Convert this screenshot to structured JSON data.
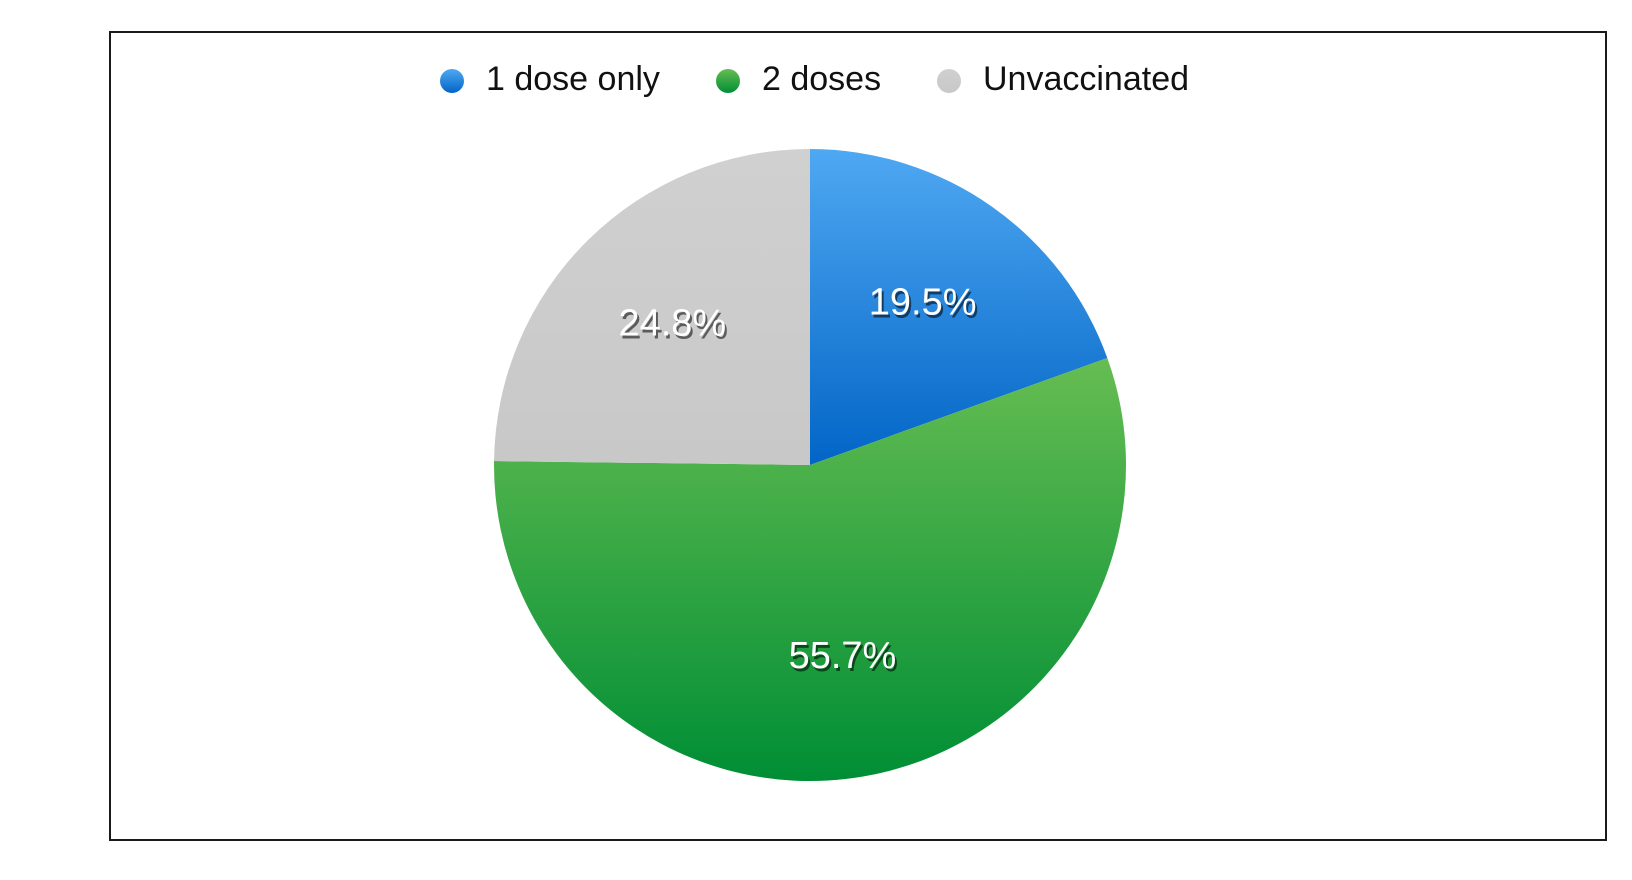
{
  "chart_data": {
    "type": "pie",
    "categories": [
      "1 dose only",
      "2 doses",
      "Unvaccinated"
    ],
    "values": [
      19.5,
      55.7,
      24.8
    ],
    "labels": [
      "19.5%",
      "55.7%",
      "24.8%"
    ],
    "colors": [
      {
        "light": "#4fa8f2",
        "dark": "#0265c6"
      },
      {
        "light": "#66bd52",
        "dark": "#008e35"
      },
      {
        "light": "#d0d0d0",
        "dark": "#c8c8c8"
      }
    ],
    "legend_position": "top-center",
    "start_angle": "12 o'clock",
    "direction": "clockwise"
  }
}
